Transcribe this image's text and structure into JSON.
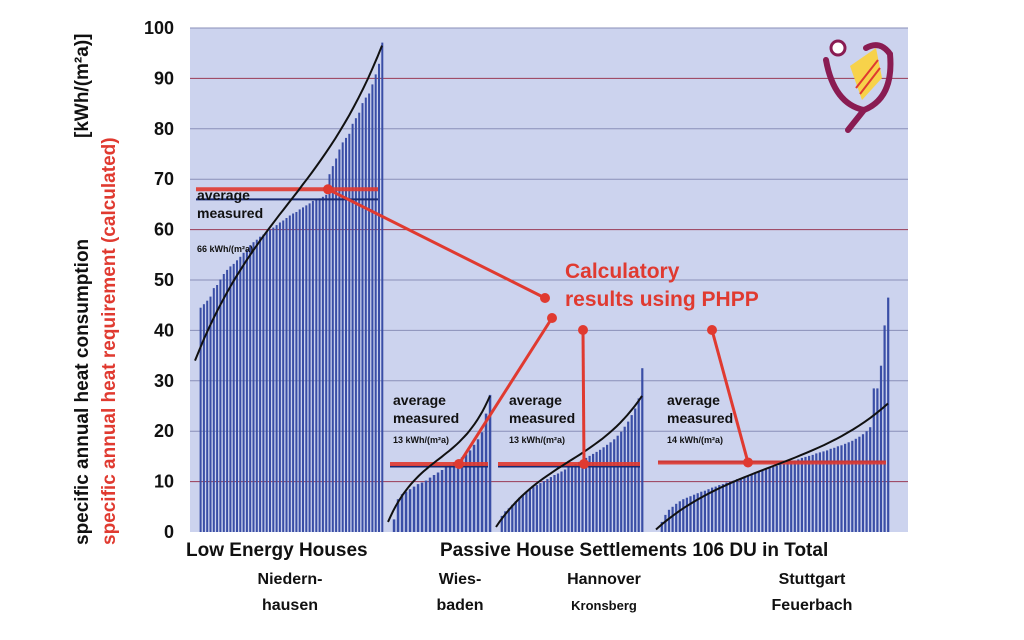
{
  "chart_data": {
    "type": "bar",
    "ylabel_measured": "specific annual heat consumption",
    "ylabel_calculated": "specific annual heat requirement (calculated)",
    "yunit": "[kWh/(m²a)]",
    "ylim": [
      0,
      100
    ],
    "yticks": [
      0,
      10,
      20,
      30,
      40,
      50,
      60,
      70,
      80,
      90,
      100
    ],
    "grid": true,
    "colors": {
      "plot_bg": "#ccd3ee",
      "bars": "#3a4ea6",
      "calc_line": "#e03a30",
      "curve": "#111111",
      "grid": "#9a3a55"
    },
    "category_labels": [
      "Low Energy Houses",
      "Passive House Settlements 106 DU in Total"
    ],
    "callout": [
      "Calculatory",
      "results using PHPP"
    ],
    "groups": [
      {
        "name": "Niedern-hausen",
        "label_lines": [
          "Niedern-",
          "hausen"
        ],
        "measured_average": 66,
        "calculated_average": 68,
        "annotation": [
          "average",
          "measured",
          "66 kWh/(m²a)"
        ],
        "values": [
          44.5,
          45.2,
          45.9,
          46.7,
          48.4,
          49.0,
          50.1,
          51.2,
          52.0,
          52.7,
          53.2,
          53.9,
          54.6,
          55.4,
          56.0,
          56.9,
          57.5,
          58.0,
          58.6,
          59.0,
          59.6,
          60.0,
          60.4,
          60.9,
          61.4,
          61.8,
          62.3,
          62.8,
          63.2,
          63.5,
          64.0,
          64.4,
          64.8,
          65.2,
          65.7,
          65.9,
          66.2,
          66.5,
          66.9,
          71.0,
          72.6,
          74.1,
          75.9,
          77.3,
          78.2,
          79.0,
          81.0,
          82.1,
          83.2,
          85.1,
          86.2,
          87.0,
          88.8,
          90.8,
          92.9,
          97.1
        ]
      },
      {
        "name": "Wies-baden",
        "label_lines": [
          "Wies-",
          "baden"
        ],
        "measured_average": 13,
        "calculated_average": 13.5,
        "annotation": [
          "average",
          "measured",
          "13 kWh/(m²a)"
        ],
        "values": [
          2.5,
          6.5,
          7.5,
          8.0,
          8.5,
          9.0,
          9.5,
          9.8,
          10.2,
          10.8,
          11.3,
          11.8,
          12.3,
          12.8,
          13.3,
          13.8,
          14.3,
          14.8,
          15.4,
          16.2,
          17.3,
          18.4,
          19.8,
          23.5,
          27.2
        ]
      },
      {
        "name": "Hannover Kronsberg",
        "label_lines": [
          "Hannover",
          "Kronsberg"
        ],
        "measured_average": 13,
        "calculated_average": 13.5,
        "annotation": [
          "average",
          "measured",
          "13 kWh/(m²a)"
        ],
        "values": [
          3.2,
          4.1,
          4.7,
          5.4,
          6.1,
          6.8,
          7.3,
          7.9,
          8.4,
          8.9,
          9.3,
          9.7,
          10.1,
          10.5,
          10.9,
          11.3,
          11.6,
          12.0,
          12.4,
          12.8,
          13.1,
          13.5,
          13.9,
          14.3,
          14.7,
          15.1,
          15.5,
          15.9,
          16.3,
          16.8,
          17.3,
          17.8,
          18.4,
          19.1,
          19.9,
          20.9,
          21.9,
          23.2,
          24.5,
          26.5,
          32.5
        ]
      },
      {
        "name": "Stuttgart Feuerbach",
        "label_lines": [
          "Stuttgart",
          "Feuerbach"
        ],
        "measured_average": 14,
        "calculated_average": 13.8,
        "annotation": [
          "average",
          "measured",
          "14 kWh/(m²a)"
        ],
        "values": [
          2.0,
          3.4,
          4.4,
          5.0,
          5.6,
          6.1,
          6.5,
          6.8,
          7.1,
          7.4,
          7.7,
          8.0,
          8.2,
          8.5,
          8.8,
          9.0,
          9.3,
          9.5,
          9.8,
          10.0,
          10.2,
          10.5,
          10.7,
          11.0,
          11.2,
          11.5,
          11.7,
          12.0,
          12.2,
          12.4,
          12.7,
          12.9,
          13.1,
          13.4,
          13.6,
          13.8,
          14.0,
          14.2,
          14.4,
          14.7,
          14.9,
          15.1,
          15.3,
          15.6,
          15.8,
          16.0,
          16.2,
          16.5,
          16.7,
          17.0,
          17.2,
          17.5,
          17.8,
          18.1,
          18.5,
          18.9,
          19.4,
          20.0,
          20.8,
          28.5,
          28.5,
          33.0,
          41.0,
          46.5
        ]
      }
    ]
  }
}
